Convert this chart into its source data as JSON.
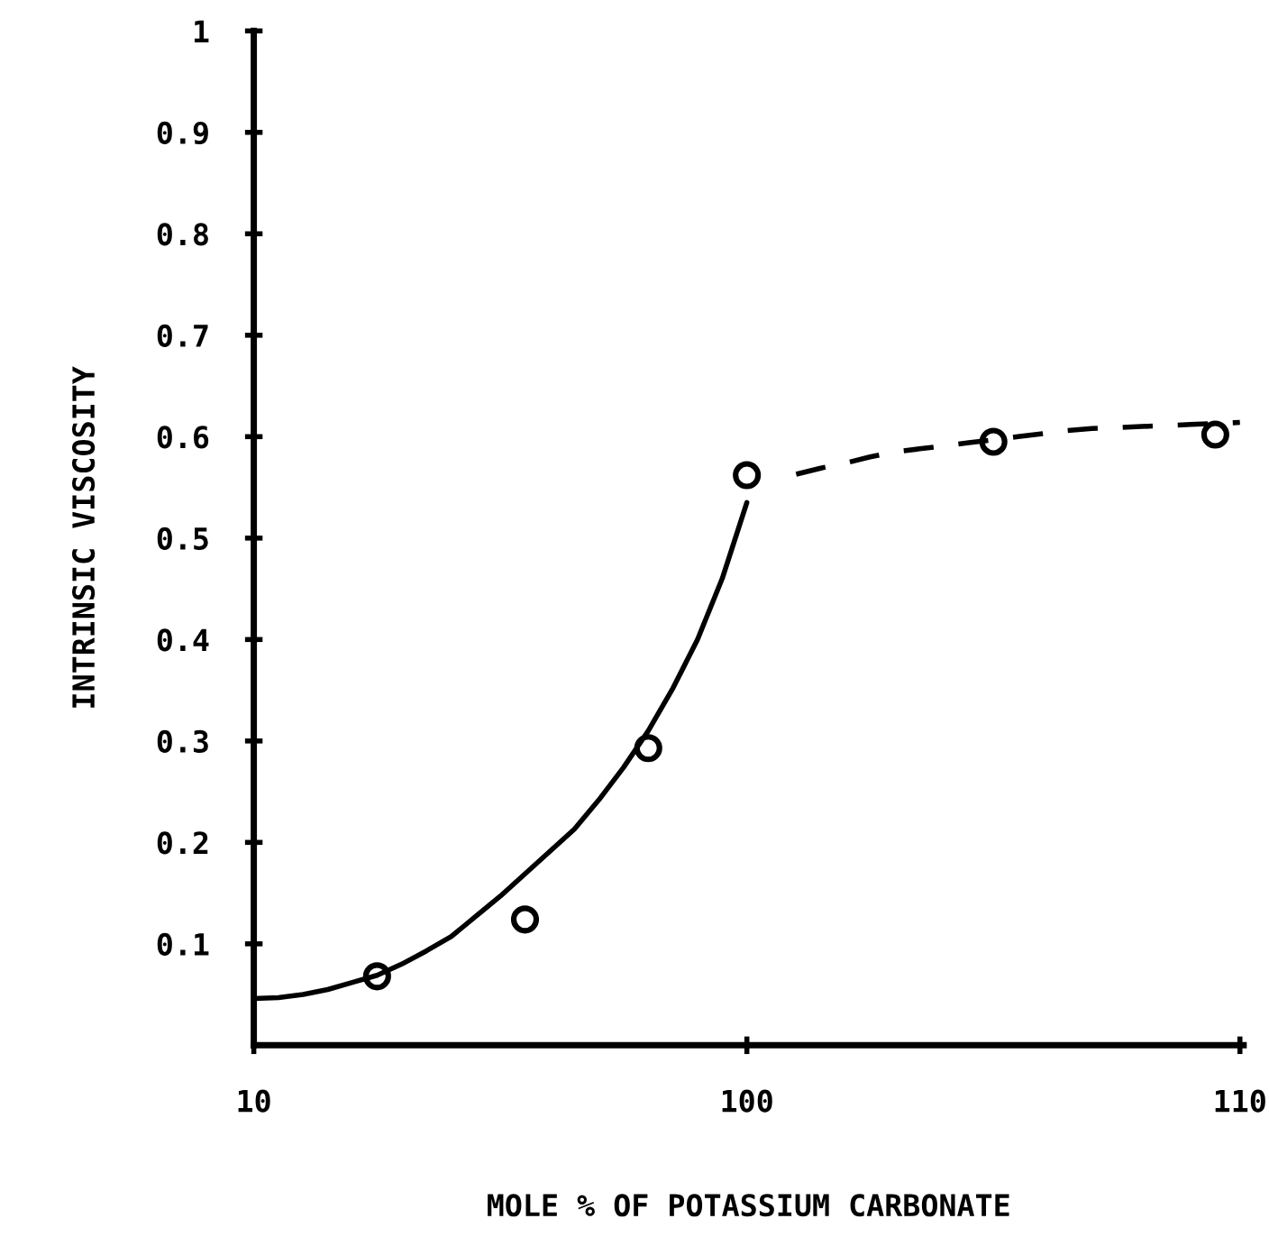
{
  "chart_data": {
    "type": "line",
    "xlabel": "MOLE % OF POTASSIUM CARBONATE",
    "ylabel": "INTRINSIC VISCOSITY",
    "categories": [
      "10",
      null,
      null,
      null,
      null,
      null,
      null,
      null,
      null,
      null,
      null,
      null,
      null,
      null,
      null,
      null,
      null,
      null,
      null,
      null,
      "100",
      null,
      null,
      null,
      null,
      null,
      null,
      null,
      null,
      null,
      null,
      null,
      null,
      null,
      null,
      null,
      null,
      null,
      null,
      null,
      "110"
    ],
    "ylim": [
      0,
      1
    ],
    "yticks": [
      {
        "value": 0.1,
        "label": "0.1"
      },
      {
        "value": 0.2,
        "label": "0.2"
      },
      {
        "value": 0.3,
        "label": "0.3"
      },
      {
        "value": 0.4,
        "label": "0.4"
      },
      {
        "value": 0.5,
        "label": "0.5"
      },
      {
        "value": 0.6,
        "label": "0.6"
      },
      {
        "value": 0.7,
        "label": "0.7"
      },
      {
        "value": 0.8,
        "label": "0.8"
      },
      {
        "value": 0.9,
        "label": "0.9"
      },
      1
    ],
    "series": [
      {
        "color": "#000000",
        "line_style": "solid",
        "values": [
          0.046,
          0.047,
          0.05,
          0.055,
          0.062,
          0.069,
          0.08,
          0.093,
          0.107,
          0.127,
          0.147,
          0.169,
          0.191,
          0.213,
          0.242,
          0.274,
          0.31,
          0.352,
          0.4,
          0.46,
          0.535,
          null,
          null,
          null,
          null,
          null,
          null,
          null,
          null,
          null,
          null,
          null,
          null,
          null,
          null,
          null,
          null,
          null,
          null,
          null,
          null
        ]
      },
      {
        "color": "#000000",
        "line_style": "dashed",
        "values": [
          null,
          null,
          null,
          null,
          null,
          null,
          null,
          null,
          null,
          null,
          null,
          null,
          null,
          null,
          null,
          null,
          null,
          null,
          null,
          null,
          null,
          null,
          0.563,
          0.569,
          0.574,
          0.58,
          0.585,
          0.588,
          0.591,
          0.594,
          0.597,
          0.6,
          0.603,
          0.606,
          0.608,
          0.609,
          0.61,
          0.611,
          0.612,
          0.613,
          0.614
        ]
      },
      {
        "type": "scatter",
        "color": "#000000",
        "marker": "circle",
        "values": [
          null,
          null,
          null,
          null,
          null,
          0.068,
          null,
          null,
          null,
          null,
          null,
          0.124,
          null,
          null,
          null,
          null,
          0.293,
          null,
          null,
          null,
          0.562,
          null,
          null,
          null,
          null,
          null,
          null,
          null,
          null,
          null,
          0.595,
          null,
          null,
          null,
          null,
          null,
          null,
          null,
          null,
          0.602,
          null
        ]
      }
    ]
  }
}
